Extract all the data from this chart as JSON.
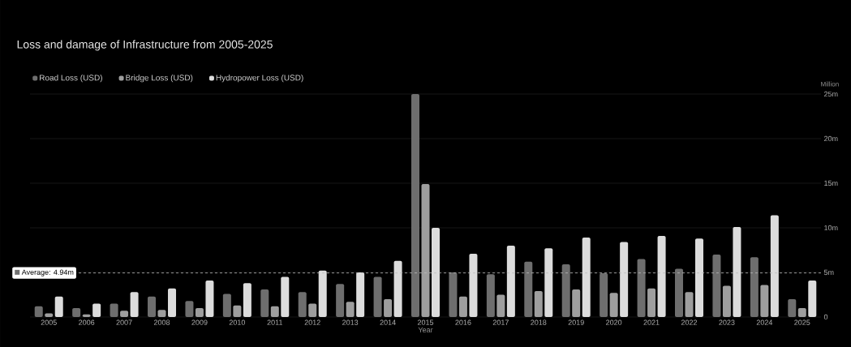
{
  "chart_data": {
    "type": "bar",
    "title": "Loss and damage of Infrastructure from 2005-2025",
    "xlabel": "Year",
    "ylabel": "Million",
    "categories": [
      "2005",
      "2006",
      "2007",
      "2008",
      "2009",
      "2010",
      "2011",
      "2012",
      "2013",
      "2014",
      "2015",
      "2016",
      "2017",
      "2018",
      "2019",
      "2020",
      "2021",
      "2022",
      "2023",
      "2024",
      "2025"
    ],
    "series": [
      {
        "name": "Road Loss (USD)",
        "color": "#6e6e6e",
        "values": [
          1.2,
          1.0,
          1.5,
          2.3,
          1.8,
          2.6,
          3.1,
          2.8,
          3.7,
          4.5,
          25,
          5.0,
          4.8,
          6.2,
          5.9,
          4.9,
          6.5,
          5.4,
          7.0,
          6.7,
          2.0
        ]
      },
      {
        "name": "Bridge Loss (USD)",
        "color": "#9e9e9e",
        "values": [
          0.4,
          0.3,
          0.7,
          0.8,
          1.0,
          1.3,
          1.2,
          1.5,
          1.7,
          2.0,
          14.9,
          2.3,
          2.5,
          2.9,
          3.1,
          2.7,
          3.2,
          2.8,
          3.5,
          3.6,
          1.0
        ]
      },
      {
        "name": "Hydropower Loss (USD)",
        "color": "#dcdcdc",
        "values": [
          2.3,
          1.5,
          2.8,
          3.2,
          4.1,
          3.8,
          4.5,
          5.2,
          5.0,
          6.3,
          10.0,
          7.1,
          8.0,
          7.7,
          8.9,
          8.4,
          9.1,
          8.8,
          10.1,
          11.4,
          4.1
        ]
      }
    ],
    "ylim": [
      0,
      25
    ],
    "yticks": [
      0,
      {
        "value": 5,
        "label": "5m"
      },
      {
        "value": 10,
        "label": "10m"
      },
      {
        "value": 15,
        "label": "15m"
      },
      {
        "value": 20,
        "label": "20m"
      },
      {
        "value": 25,
        "label": "25m"
      }
    ],
    "ref_lines": [
      {
        "axis": "y",
        "value": 4.94,
        "label": "Average: 4.94m",
        "line_style": "dashed",
        "color": "#bbbbbb"
      }
    ],
    "grid": "y",
    "legend": "top left"
  }
}
